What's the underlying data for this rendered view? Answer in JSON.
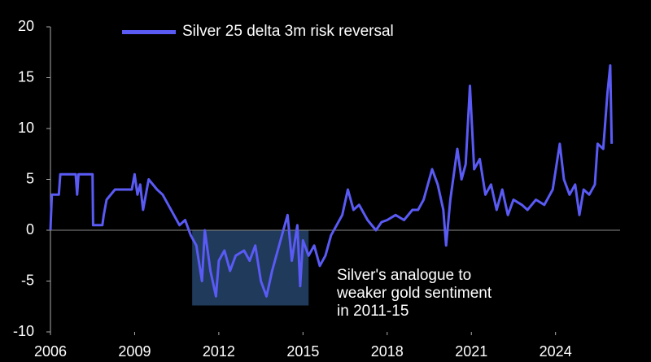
{
  "chart_data": {
    "type": "line",
    "x": [
      2006.0,
      2006.05,
      2006.3,
      2006.35,
      2006.9,
      2006.95,
      2007.0,
      2007.5,
      2007.52,
      2007.85,
      2007.9,
      2008.0,
      2008.3,
      2008.9,
      2009.0,
      2009.1,
      2009.2,
      2009.3,
      2009.5,
      2009.8,
      2010.0,
      2010.2,
      2010.4,
      2010.6,
      2010.8,
      2011.0,
      2011.2,
      2011.4,
      2011.5,
      2011.7,
      2011.9,
      2012.0,
      2012.2,
      2012.4,
      2012.6,
      2012.9,
      2013.1,
      2013.3,
      2013.5,
      2013.7,
      2013.9,
      2014.1,
      2014.3,
      2014.45,
      2014.6,
      2014.8,
      2014.9,
      2015.0,
      2015.2,
      2015.4,
      2015.6,
      2015.8,
      2016.0,
      2016.2,
      2016.4,
      2016.6,
      2016.8,
      2017.0,
      2017.3,
      2017.6,
      2017.8,
      2018.0,
      2018.3,
      2018.6,
      2018.9,
      2019.1,
      2019.3,
      2019.6,
      2019.8,
      2020.0,
      2020.1,
      2020.25,
      2020.5,
      2020.65,
      2020.8,
      2020.95,
      2021.1,
      2021.3,
      2021.5,
      2021.7,
      2021.9,
      2022.1,
      2022.3,
      2022.5,
      2022.8,
      2023.0,
      2023.3,
      2023.6,
      2023.9,
      2024.15,
      2024.3,
      2024.5,
      2024.7,
      2024.85,
      2025.0,
      2025.2,
      2025.4,
      2025.5,
      2025.7,
      2025.85,
      2025.95,
      2026.0
    ],
    "series": [
      {
        "name": "Silver 25 delta 3m risk reversal",
        "color": "#5a5af5",
        "values": [
          0,
          3.5,
          3.5,
          5.5,
          5.5,
          3.5,
          5.5,
          5.5,
          0.5,
          0.5,
          1.5,
          3,
          4,
          4,
          5.5,
          3.5,
          4.5,
          2,
          5,
          4,
          3.5,
          2.5,
          1.5,
          0.5,
          1,
          -0.5,
          -1.5,
          -5,
          0,
          -4,
          -6.5,
          -3,
          -2,
          -4,
          -2.5,
          -2,
          -3,
          -1.5,
          -5,
          -6.5,
          -4,
          -2,
          0,
          1.5,
          -3,
          0.5,
          -5.5,
          -1,
          -2.5,
          -1.5,
          -3.5,
          -2.5,
          -0.5,
          0.5,
          1.5,
          4,
          2,
          2.5,
          1,
          0,
          0.8,
          1,
          1.5,
          1,
          2,
          2,
          3,
          6,
          4.5,
          2,
          -1.5,
          3,
          8,
          5,
          6.5,
          14.2,
          6,
          7,
          3.5,
          4.5,
          2,
          4,
          1.5,
          3,
          2.5,
          2,
          3,
          2.5,
          4,
          8.5,
          5,
          3.5,
          4.5,
          1.5,
          4,
          3.5,
          4.5,
          8.5,
          8,
          13.5,
          16.2,
          8.5
        ]
      }
    ],
    "xlim": [
      2006,
      2026.3
    ],
    "xticks": [
      2006,
      2009,
      2012,
      2015,
      2018,
      2021,
      2024
    ],
    "ylim": [
      -10,
      20
    ],
    "yticks": [
      -10,
      -5,
      0,
      5,
      10,
      15,
      20
    ],
    "highlight": {
      "x": [
        2011.05,
        2015.2
      ],
      "y": [
        -7.4,
        0
      ],
      "color": "#1f3a5a"
    },
    "annotation": [
      "Silver's analogue to",
      "weaker gold sentiment",
      "in 2011-15"
    ]
  }
}
